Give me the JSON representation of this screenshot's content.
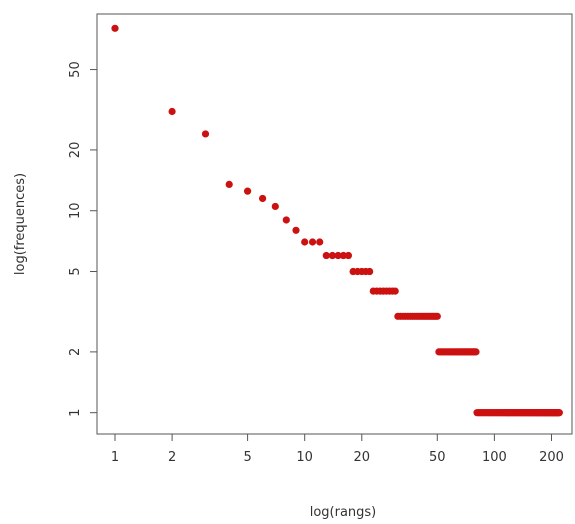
{
  "chart_data": {
    "type": "scatter",
    "title": "",
    "xlabel": "log(rangs)",
    "ylabel": "log(frequences)",
    "x_scale": "log",
    "y_scale": "log",
    "xlim": [
      1,
      230
    ],
    "ylim": [
      0.92,
      90
    ],
    "grid": false,
    "legend": "none",
    "color": "#cc1111",
    "x_ticks": [
      1,
      2,
      5,
      10,
      20,
      50,
      100,
      200
    ],
    "x_tick_labels": [
      "1",
      "2",
      "5",
      "10",
      "20",
      "50",
      "100",
      "200"
    ],
    "y_ticks": [
      1,
      2,
      5,
      10,
      20,
      50
    ],
    "y_tick_labels": [
      "1",
      "2",
      "5",
      "10",
      "20",
      "50"
    ],
    "groups": [
      {
        "y": 80,
        "x_from": 1,
        "x_to": 1
      },
      {
        "y": 31,
        "x_from": 2,
        "x_to": 2
      },
      {
        "y": 24,
        "x_from": 3,
        "x_to": 3
      },
      {
        "y": 13.5,
        "x_from": 4,
        "x_to": 4
      },
      {
        "y": 12.5,
        "x_from": 5,
        "x_to": 5
      },
      {
        "y": 11.5,
        "x_from": 6,
        "x_to": 6
      },
      {
        "y": 10.5,
        "x_from": 7,
        "x_to": 7
      },
      {
        "y": 9,
        "x_from": 8,
        "x_to": 8
      },
      {
        "y": 8,
        "x_from": 9,
        "x_to": 9
      },
      {
        "y": 7,
        "x_from": 10,
        "x_to": 12
      },
      {
        "y": 6,
        "x_from": 13,
        "x_to": 17
      },
      {
        "y": 5,
        "x_from": 18,
        "x_to": 22
      },
      {
        "y": 4,
        "x_from": 23,
        "x_to": 30
      },
      {
        "y": 3,
        "x_from": 31,
        "x_to": 50
      },
      {
        "y": 2,
        "x_from": 51,
        "x_to": 80
      },
      {
        "y": 1,
        "x_from": 81,
        "x_to": 220
      }
    ]
  }
}
